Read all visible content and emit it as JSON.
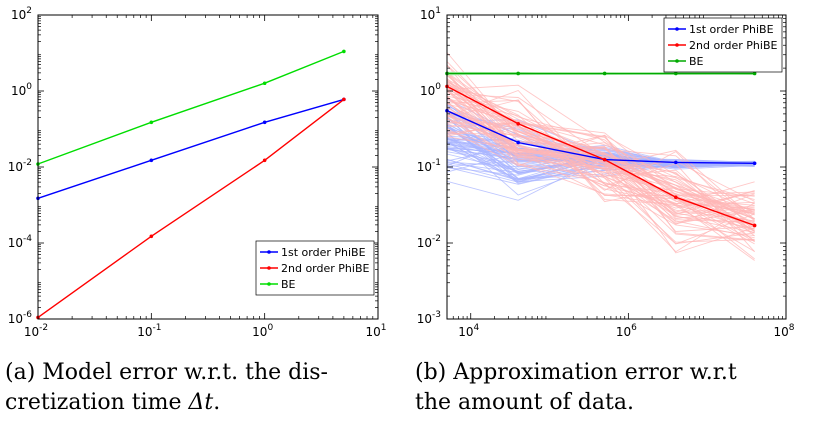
{
  "chart_data": [
    {
      "type": "line",
      "x_scale": "log",
      "y_scale": "log",
      "xlim": [
        0.01,
        10
      ],
      "ylim": [
        1e-06,
        100
      ],
      "x_ticks": [
        {
          "value": 0.01,
          "base": "10",
          "exp": "-2"
        },
        {
          "value": 0.1,
          "base": "10",
          "exp": "-1"
        },
        {
          "value": 1,
          "base": "10",
          "exp": "0"
        },
        {
          "value": 10,
          "base": "10",
          "exp": "1"
        }
      ],
      "y_ticks": [
        {
          "value": 1e-06,
          "base": "10",
          "exp": "-6"
        },
        {
          "value": 0.0001,
          "base": "10",
          "exp": "-4"
        },
        {
          "value": 0.01,
          "base": "10",
          "exp": "-2"
        },
        {
          "value": 1,
          "base": "10",
          "exp": "0"
        },
        {
          "value": 100,
          "base": "10",
          "exp": "2"
        }
      ],
      "grid": false,
      "legend_position": "bottom-right",
      "series": [
        {
          "name": "1st order PhiBE",
          "color": "#0000ff",
          "x": [
            0.01,
            0.1,
            1,
            5
          ],
          "y": [
            0.0015,
            0.015,
            0.15,
            0.6
          ]
        },
        {
          "name": "2nd order PhiBE",
          "color": "#ff0000",
          "x": [
            0.01,
            0.1,
            1,
            5
          ],
          "y": [
            1.1e-06,
            0.00015,
            0.015,
            0.6
          ]
        },
        {
          "name": "BE",
          "color": "#00dd00",
          "x": [
            0.01,
            0.1,
            1,
            5
          ],
          "y": [
            0.012,
            0.15,
            1.6,
            11
          ]
        }
      ]
    },
    {
      "type": "line",
      "x_scale": "log",
      "y_scale": "log",
      "xlim": [
        5000,
        100000000
      ],
      "ylim": [
        0.001,
        10
      ],
      "x_ticks": [
        {
          "value": 10000,
          "base": "10",
          "exp": "4"
        },
        {
          "value": 1000000,
          "base": "10",
          "exp": "6"
        },
        {
          "value": 100000000,
          "base": "10",
          "exp": "8"
        }
      ],
      "y_ticks": [
        {
          "value": 0.001,
          "base": "10",
          "exp": "-3"
        },
        {
          "value": 0.01,
          "base": "10",
          "exp": "-2"
        },
        {
          "value": 0.1,
          "base": "10",
          "exp": "-1"
        },
        {
          "value": 1,
          "base": "10",
          "exp": "0"
        },
        {
          "value": 10,
          "base": "10",
          "exp": "1"
        }
      ],
      "grid": false,
      "legend_position": "top-right",
      "x": [
        5000,
        40000,
        500000,
        4000000,
        40000000
      ],
      "series": [
        {
          "name": "1st order PhiBE",
          "color": "#0000ff",
          "y": [
            0.55,
            0.21,
            0.125,
            0.115,
            0.112
          ]
        },
        {
          "name": "2nd order PhiBE",
          "color": "#ff0000",
          "y": [
            1.15,
            0.37,
            0.125,
            0.04,
            0.017
          ]
        },
        {
          "name": "BE",
          "color": "#00aa00",
          "y": [
            1.7,
            1.7,
            1.7,
            1.7,
            1.7
          ]
        }
      ],
      "spread": [
        {
          "series": "1st order PhiBE",
          "color": "#a8b4ff",
          "y_min": [
            0.05,
            0.03,
            0.07,
            0.09,
            0.1
          ],
          "y_max": [
            1.1,
            0.55,
            0.22,
            0.13,
            0.122
          ]
        },
        {
          "series": "2nd order PhiBE",
          "color": "#ffb6b6",
          "y_min": [
            0.12,
            0.05,
            0.02,
            0.005,
            0.0035
          ],
          "y_max": [
            4.5,
            1.5,
            0.5,
            0.25,
            0.09
          ]
        },
        {
          "series": "BE",
          "color": "#b8f0b8",
          "y_min": [
            1.6,
            1.62,
            1.63,
            1.63,
            1.64
          ],
          "y_max": [
            1.8,
            1.78,
            1.76,
            1.75,
            1.74
          ]
        }
      ]
    }
  ],
  "captions": {
    "a": {
      "line1": "(a) Model error w.r.t. the dis-",
      "line2_text": "cretization time ",
      "line2_math": "Δt",
      "line2_end": "."
    },
    "b": {
      "line1": "(b) Approximation error w.r.t",
      "line2": "the amount of data."
    }
  }
}
